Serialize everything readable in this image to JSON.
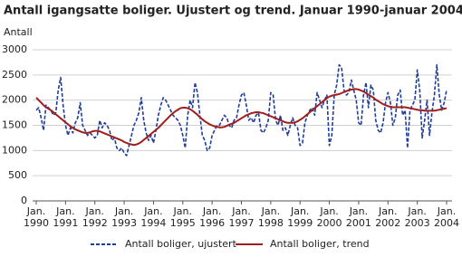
{
  "chart_data": {
    "type": "line",
    "title": "Antall igangsatte boliger. Ujustert og trend. Januar 1990-januar 2004",
    "y_label": "Antall",
    "categories": [
      "Jan. 1990",
      null,
      null,
      null,
      null,
      null,
      null,
      null,
      null,
      null,
      null,
      null,
      "Jan. 1991",
      null,
      null,
      null,
      null,
      null,
      null,
      null,
      null,
      null,
      null,
      null,
      "Jan. 1992",
      null,
      null,
      null,
      null,
      null,
      null,
      null,
      null,
      null,
      null,
      null,
      "Jan. 1993",
      null,
      null,
      null,
      null,
      null,
      null,
      null,
      null,
      null,
      null,
      null,
      "Jan. 1994",
      null,
      null,
      null,
      null,
      null,
      null,
      null,
      null,
      null,
      null,
      null,
      "Jan. 1995",
      null,
      null,
      null,
      null,
      null,
      null,
      null,
      null,
      null,
      null,
      null,
      "Jan. 1996",
      null,
      null,
      null,
      null,
      null,
      null,
      null,
      null,
      null,
      null,
      null,
      "Jan. 1997",
      null,
      null,
      null,
      null,
      null,
      null,
      null,
      null,
      null,
      null,
      null,
      "Jan. 1998",
      null,
      null,
      null,
      null,
      null,
      null,
      null,
      null,
      null,
      null,
      null,
      "Jan. 1999",
      null,
      null,
      null,
      null,
      null,
      null,
      null,
      null,
      null,
      null,
      null,
      "Jan. 2000",
      null,
      null,
      null,
      null,
      null,
      null,
      null,
      null,
      null,
      null,
      null,
      "Jan. 2001",
      null,
      null,
      null,
      null,
      null,
      null,
      null,
      null,
      null,
      null,
      null,
      "Jan. 2002",
      null,
      null,
      null,
      null,
      null,
      null,
      null,
      null,
      null,
      null,
      null,
      "Jan. 2003",
      null,
      null,
      null,
      null,
      null,
      null,
      null,
      null,
      null,
      null,
      null,
      "Jan. 2004"
    ],
    "series": [
      {
        "name": "Antall boliger, ujustert",
        "color": "#1f3d99",
        "dashed": true,
        "values": [
          1800,
          1850,
          1650,
          1400,
          1900,
          1850,
          1800,
          1700,
          1750,
          2200,
          2450,
          1900,
          1500,
          1300,
          1450,
          1350,
          1550,
          1650,
          1950,
          1500,
          1400,
          1300,
          1350,
          1300,
          1250,
          1300,
          1600,
          1450,
          1550,
          1500,
          1400,
          1200,
          1250,
          1050,
          1000,
          1050,
          950,
          900,
          1100,
          1300,
          1500,
          1600,
          1750,
          2050,
          1600,
          1350,
          1200,
          1300,
          1150,
          1400,
          1700,
          1900,
          2050,
          2000,
          1900,
          1800,
          1700,
          1650,
          1600,
          1500,
          1300,
          1050,
          1700,
          2000,
          1850,
          2350,
          2150,
          1700,
          1300,
          1200,
          1000,
          1050,
          1300,
          1400,
          1500,
          1500,
          1600,
          1700,
          1650,
          1500,
          1450,
          1600,
          1650,
          1900,
          2100,
          2150,
          1900,
          1600,
          1650,
          1550,
          1700,
          1750,
          1400,
          1350,
          1450,
          1600,
          2150,
          2100,
          1600,
          1500,
          1700,
          1400,
          1450,
          1300,
          1500,
          1650,
          1500,
          1450,
          1100,
          1150,
          1550,
          1700,
          1800,
          1850,
          1700,
          2150,
          2000,
          1850,
          2000,
          2100,
          1100,
          1300,
          2100,
          2300,
          2700,
          2650,
          2200,
          2100,
          2150,
          2400,
          2200,
          2000,
          1550,
          1500,
          2100,
          2350,
          1850,
          2300,
          2200,
          1600,
          1400,
          1350,
          1550,
          1950,
          2150,
          1950,
          1500,
          1650,
          2100,
          2200,
          1700,
          1800,
          1050,
          1800,
          1900,
          2000,
          2600,
          2200,
          1250,
          1600,
          2000,
          1300,
          1750,
          2100,
          2700,
          2100,
          1800,
          1950,
          2200
        ]
      },
      {
        "name": "Antall boliger, trend",
        "color": "#a01e1e",
        "dashed": false,
        "values": [
          2050,
          2000,
          1950,
          1900,
          1860,
          1830,
          1800,
          1760,
          1720,
          1680,
          1640,
          1600,
          1560,
          1520,
          1480,
          1450,
          1420,
          1400,
          1380,
          1360,
          1350,
          1350,
          1360,
          1380,
          1390,
          1390,
          1380,
          1360,
          1340,
          1320,
          1300,
          1280,
          1260,
          1240,
          1220,
          1200,
          1170,
          1150,
          1130,
          1120,
          1110,
          1120,
          1140,
          1170,
          1210,
          1250,
          1290,
          1330,
          1370,
          1410,
          1450,
          1500,
          1550,
          1600,
          1650,
          1700,
          1740,
          1780,
          1810,
          1840,
          1850,
          1850,
          1840,
          1820,
          1790,
          1750,
          1710,
          1660,
          1620,
          1580,
          1550,
          1520,
          1500,
          1480,
          1470,
          1460,
          1460,
          1470,
          1490,
          1510,
          1530,
          1550,
          1580,
          1610,
          1640,
          1670,
          1700,
          1720,
          1740,
          1750,
          1760,
          1760,
          1750,
          1740,
          1720,
          1700,
          1680,
          1660,
          1640,
          1620,
          1600,
          1580,
          1560,
          1550,
          1550,
          1550,
          1560,
          1580,
          1610,
          1640,
          1680,
          1720,
          1760,
          1800,
          1840,
          1880,
          1920,
          1960,
          2000,
          2040,
          2070,
          2090,
          2100,
          2110,
          2120,
          2140,
          2160,
          2180,
          2200,
          2210,
          2220,
          2220,
          2210,
          2190,
          2170,
          2140,
          2110,
          2080,
          2050,
          2010,
          1980,
          1950,
          1920,
          1900,
          1880,
          1870,
          1860,
          1860,
          1860,
          1860,
          1860,
          1860,
          1850,
          1840,
          1830,
          1820,
          1810,
          1800,
          1800,
          1790,
          1790,
          1790,
          1790,
          1790,
          1800,
          1810,
          1820,
          1830,
          1840
        ]
      }
    ],
    "ylim": [
      0,
      3000
    ],
    "yticks": [
      0,
      500,
      1000,
      1500,
      2000,
      2500,
      3000
    ],
    "grid": true,
    "legend": "bottom"
  }
}
